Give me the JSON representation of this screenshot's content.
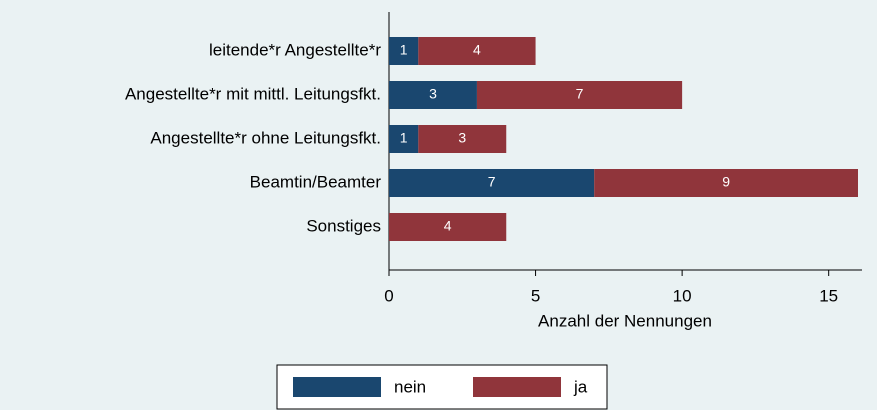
{
  "chart_data": {
    "type": "stacked_barh",
    "categories": [
      "leitende*r Angestellte*r",
      "Angestellte*r mit mittl. Leitungsfkt.",
      "Angestellte*r ohne Leitungsfkt.",
      "Beamtin/Beamter",
      "Sonstiges"
    ],
    "series": [
      {
        "name": "nein",
        "color": "#1a476f",
        "values": [
          1,
          3,
          1,
          7,
          0
        ]
      },
      {
        "name": "ja",
        "color": "#90353b",
        "values": [
          4,
          7,
          3,
          9,
          4
        ]
      }
    ],
    "xlim": [
      0,
      16
    ],
    "xticks": [
      0,
      5,
      10,
      15
    ],
    "xlabel": "Anzahl der Nennungen",
    "legend": "bottom"
  }
}
